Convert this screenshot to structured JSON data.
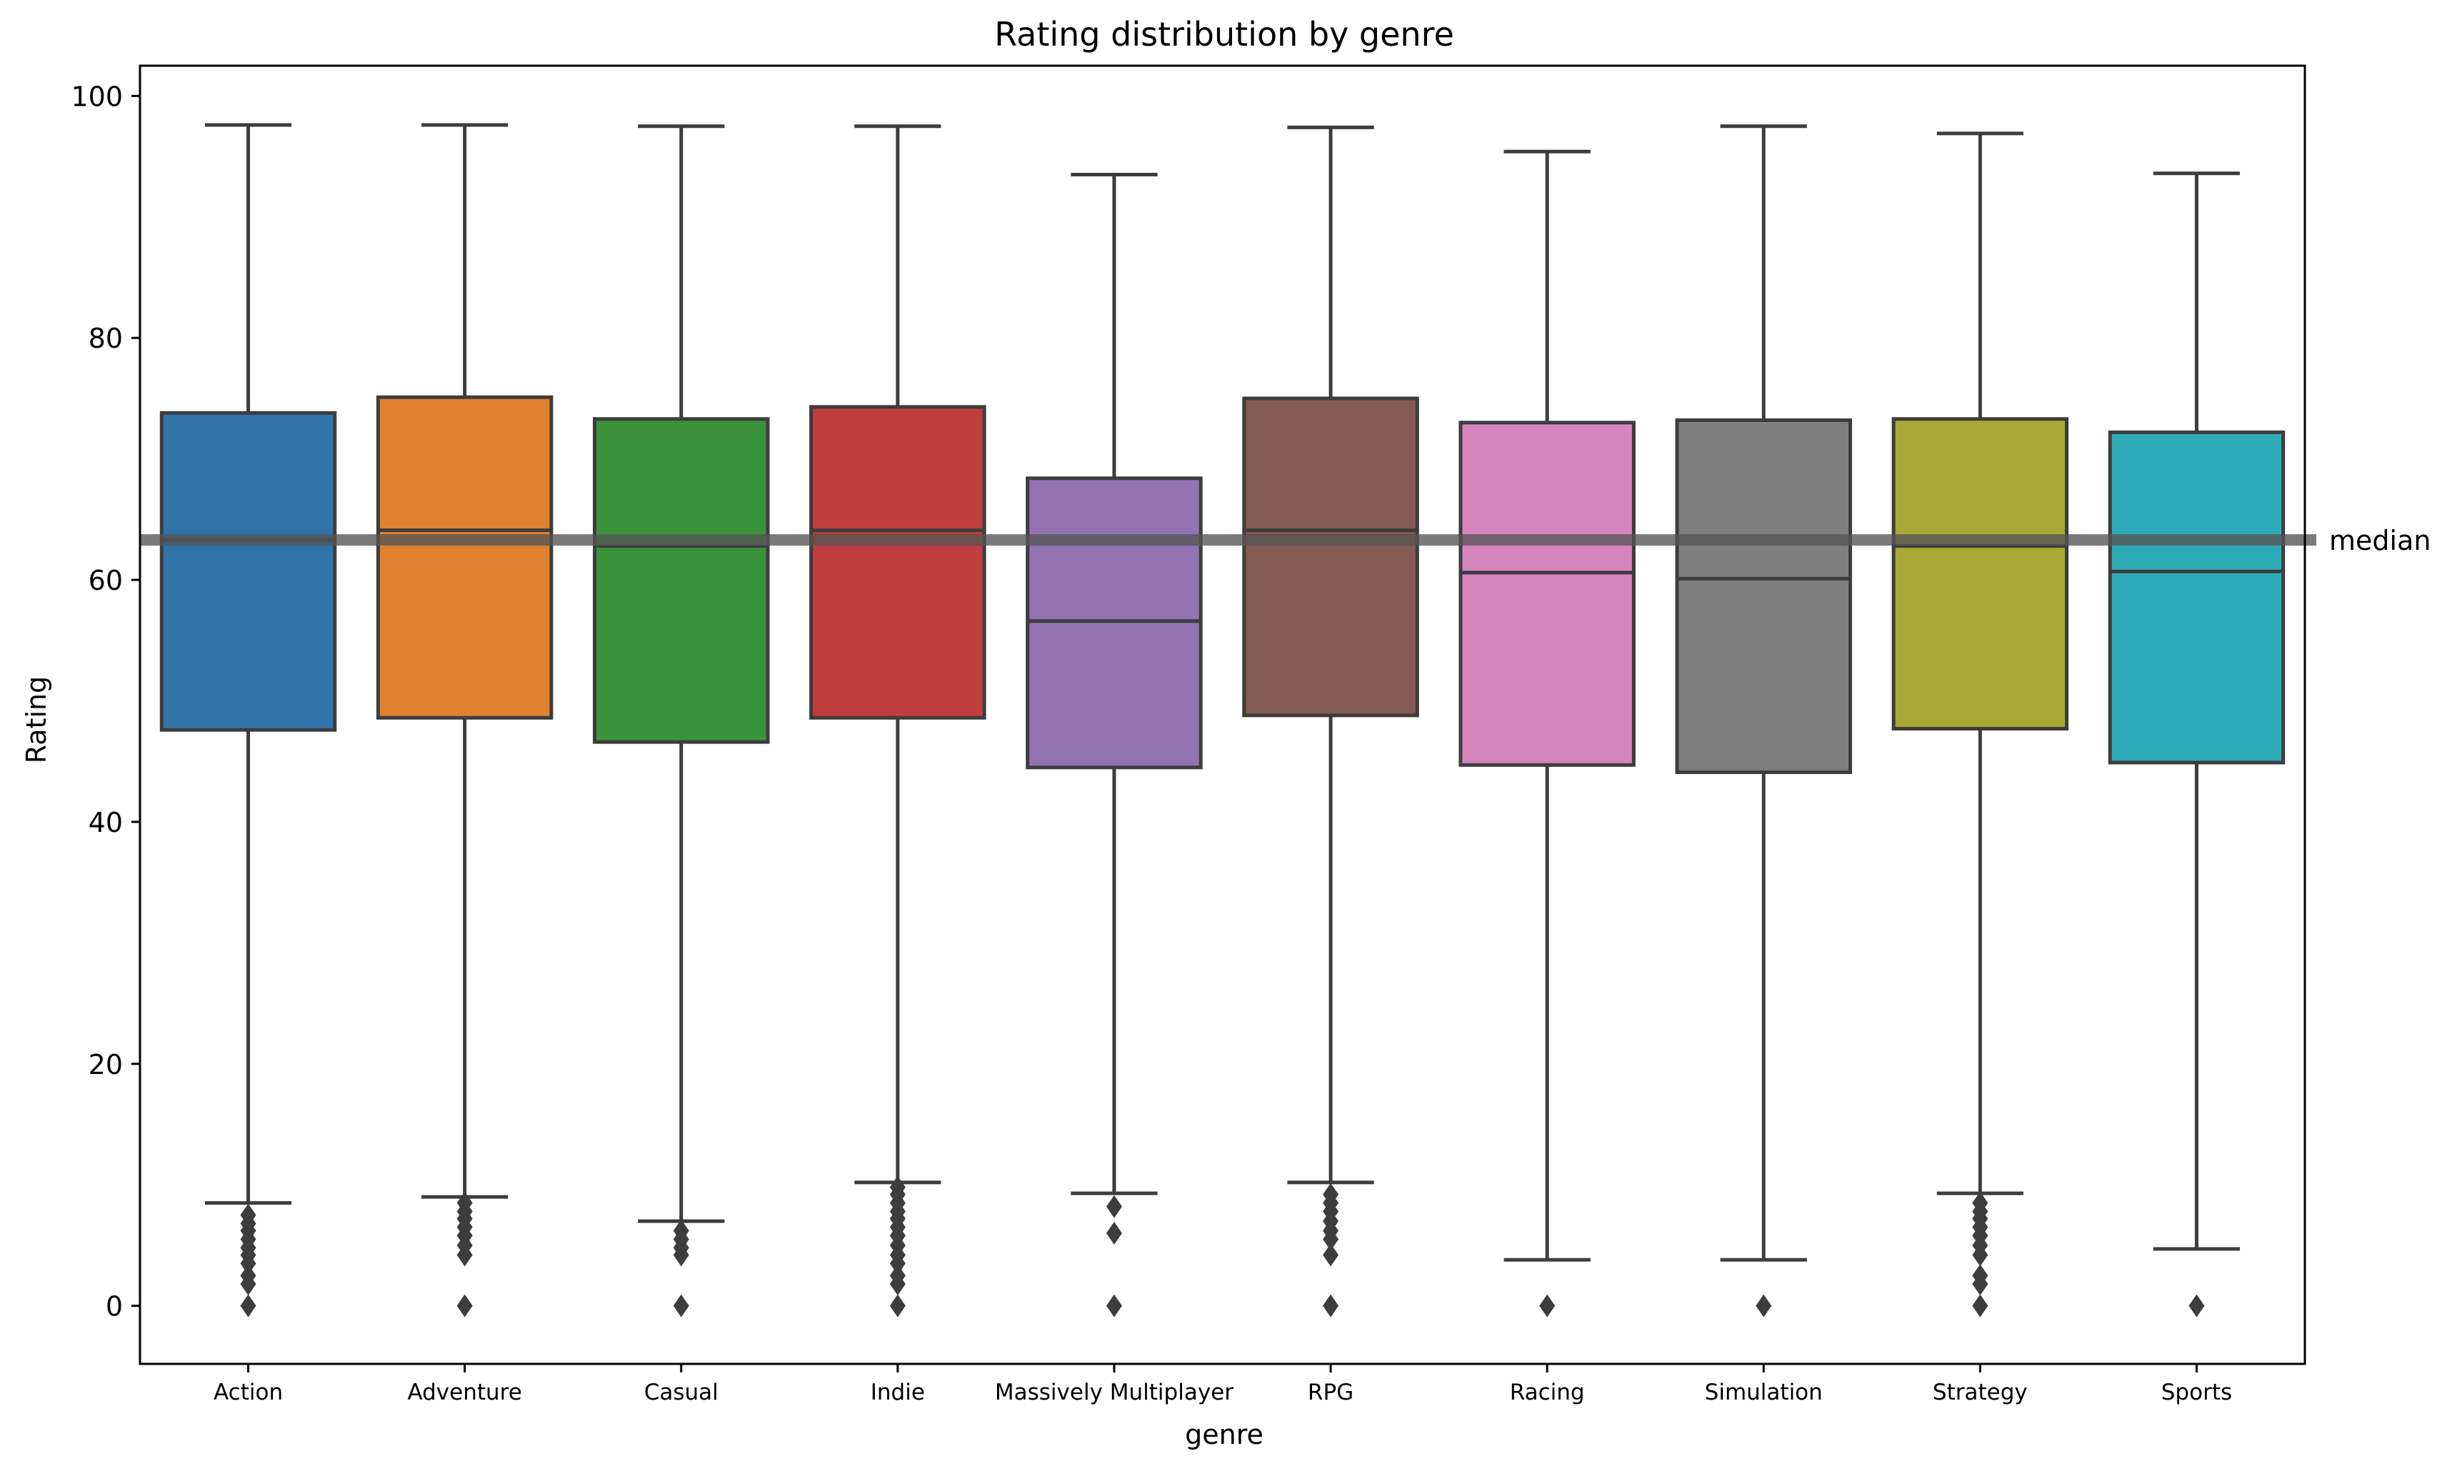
{
  "chart_data": {
    "type": "box",
    "title": "Rating distribution by genre",
    "xlabel": "genre",
    "ylabel": "Rating",
    "ylim": [
      -4.8,
      102.5
    ],
    "yticks": [
      0,
      20,
      40,
      60,
      80,
      100
    ],
    "ytick_labels": [
      "0",
      "20",
      "40",
      "60",
      "80",
      "100"
    ],
    "grid": false,
    "reference_line": {
      "value": 63.3,
      "label": "median",
      "color": "#555555"
    },
    "boxes": [
      {
        "category": "Action",
        "color": "#2f73a8",
        "whisker_low": 8.5,
        "q1": 47.6,
        "median": 63.3,
        "q3": 73.8,
        "whisker_high": 97.6,
        "outliers": [
          7.5,
          6.8,
          6.2,
          5.5,
          4.8,
          4.2,
          3.5,
          2.5,
          1.8,
          0
        ]
      },
      {
        "category": "Adventure",
        "color": "#e0812f",
        "whisker_low": 9.0,
        "q1": 48.6,
        "median": 64.1,
        "q3": 75.1,
        "whisker_high": 97.6,
        "outliers": [
          8.5,
          7.8,
          7.2,
          6.5,
          5.8,
          5.0,
          4.2,
          0
        ]
      },
      {
        "category": "Casual",
        "color": "#3a923a",
        "whisker_low": 7.0,
        "q1": 46.6,
        "median": 62.8,
        "q3": 73.3,
        "whisker_high": 97.5,
        "outliers": [
          6.2,
          5.5,
          4.8,
          4.2,
          0
        ]
      },
      {
        "category": "Indie",
        "color": "#c03d3e",
        "whisker_low": 10.2,
        "q1": 48.6,
        "median": 64.1,
        "q3": 74.3,
        "whisker_high": 97.5,
        "outliers": [
          9.8,
          9.2,
          8.5,
          7.8,
          7.2,
          6.5,
          5.8,
          5.0,
          4.2,
          3.5,
          2.5,
          1.8,
          0
        ]
      },
      {
        "category": "Massively Multiplayer",
        "color": "#9372b2",
        "whisker_low": 9.3,
        "q1": 44.5,
        "median": 56.6,
        "q3": 68.4,
        "whisker_high": 93.5,
        "outliers": [
          8.2,
          6.0,
          0
        ]
      },
      {
        "category": "RPG",
        "color": "#845b53",
        "whisker_low": 10.2,
        "q1": 48.8,
        "median": 64.1,
        "q3": 75.0,
        "whisker_high": 97.4,
        "outliers": [
          9.2,
          8.5,
          7.8,
          7.0,
          6.2,
          5.5,
          4.2,
          0
        ]
      },
      {
        "category": "Racing",
        "color": "#d684bd",
        "whisker_low": 3.8,
        "q1": 44.7,
        "median": 60.6,
        "q3": 73.0,
        "whisker_high": 95.4,
        "outliers": [
          0
        ]
      },
      {
        "category": "Simulation",
        "color": "#7f7f7f",
        "whisker_low": 3.8,
        "q1": 44.1,
        "median": 60.1,
        "q3": 73.2,
        "whisker_high": 97.5,
        "outliers": [
          0
        ]
      },
      {
        "category": "Strategy",
        "color": "#a9aa35",
        "whisker_low": 9.3,
        "q1": 47.7,
        "median": 62.8,
        "q3": 73.3,
        "whisker_high": 96.9,
        "outliers": [
          8.5,
          7.8,
          7.2,
          6.5,
          5.8,
          5.0,
          4.2,
          2.5,
          1.8,
          0
        ]
      },
      {
        "category": "Sports",
        "color": "#2eabb8",
        "whisker_low": 4.7,
        "q1": 44.9,
        "median": 60.7,
        "q3": 72.2,
        "whisker_high": 93.6,
        "outliers": [
          0
        ]
      }
    ]
  }
}
